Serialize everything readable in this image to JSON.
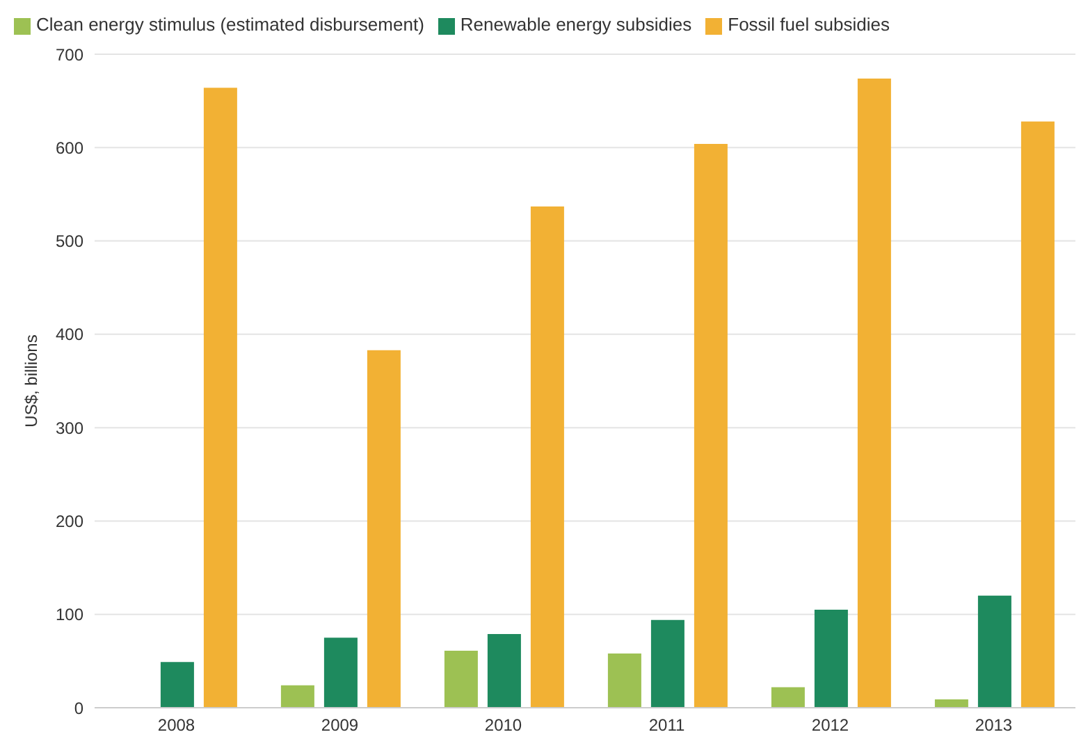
{
  "chart_data": {
    "type": "bar",
    "ylabel": "US$, billions",
    "categories": [
      "2008",
      "2009",
      "2010",
      "2011",
      "2012",
      "2013"
    ],
    "series": [
      {
        "name": "Clean energy stimulus (estimated disbursement)",
        "color": "#9dc153",
        "values": [
          null,
          24,
          61,
          58,
          22,
          9
        ]
      },
      {
        "name": "Renewable energy subsidies",
        "color": "#1e8a5e",
        "values": [
          49,
          75,
          79,
          94,
          105,
          120
        ]
      },
      {
        "name": "Fossil fuel subsidies",
        "color": "#f2b134",
        "values": [
          664,
          383,
          537,
          604,
          674,
          628
        ]
      }
    ],
    "ylim": [
      0,
      700
    ],
    "yticks": [
      0,
      100,
      200,
      300,
      400,
      500,
      600,
      700
    ],
    "grid": "y",
    "legend": "top left"
  }
}
